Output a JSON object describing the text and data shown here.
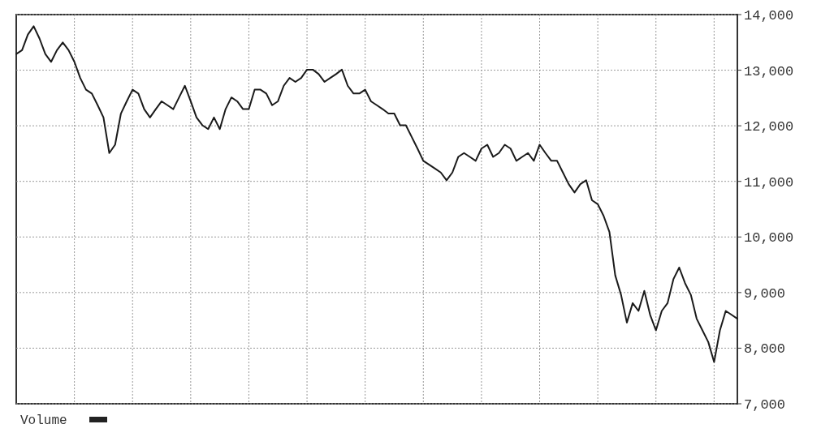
{
  "chart_data": {
    "type": "line",
    "categories": [
      null,
      null,
      null,
      null,
      null,
      null,
      null,
      null,
      null,
      null,
      null,
      null,
      null,
      null,
      null,
      null,
      null,
      null,
      null,
      null,
      null,
      null,
      null,
      null,
      null,
      null,
      null,
      null,
      null,
      null,
      null,
      null,
      null,
      null,
      null,
      null,
      null,
      null,
      null,
      null,
      null,
      null,
      null,
      null,
      null,
      null,
      null,
      null,
      null,
      null,
      null,
      null,
      null,
      null,
      null,
      null,
      null,
      null,
      null,
      null,
      null,
      null,
      null,
      null,
      null,
      null,
      null,
      null,
      null,
      null,
      null,
      null,
      null,
      null,
      null,
      null,
      null,
      null,
      null,
      null,
      null,
      null,
      null,
      null,
      null,
      null,
      null,
      null,
      null,
      null,
      null,
      null,
      null,
      null,
      null,
      null,
      null,
      null,
      null,
      null,
      null,
      null,
      null,
      null,
      null,
      null,
      null,
      null,
      null,
      null,
      null,
      null,
      null,
      null,
      null,
      null,
      null,
      null,
      null,
      null,
      null,
      null,
      null,
      null,
      null
    ],
    "series": [
      {
        "color": "#1a1a1a",
        "values": [
          13290,
          13360,
          13640,
          13790,
          13570,
          13290,
          13150,
          13360,
          13500,
          13360,
          13150,
          12860,
          12650,
          12580,
          12370,
          12150,
          11510,
          11660,
          12220,
          12440,
          12650,
          12580,
          12300,
          12150,
          12300,
          12440,
          12370,
          12300,
          12510,
          12720,
          12440,
          12150,
          12010,
          11940,
          12150,
          11940,
          12300,
          12510,
          12440,
          12300,
          12300,
          12650,
          12650,
          12580,
          12370,
          12440,
          12720,
          12860,
          12790,
          12860,
          13010,
          13010,
          12930,
          12790,
          12860,
          12930,
          13010,
          12720,
          12580,
          12580,
          12650,
          12440,
          12370,
          12300,
          12220,
          12220,
          12010,
          12010,
          11800,
          11590,
          11370,
          11300,
          11230,
          11160,
          11020,
          11160,
          11440,
          11510,
          11440,
          11370,
          11590,
          11660,
          11440,
          11510,
          11660,
          11590,
          11370,
          11440,
          11510,
          11370,
          11660,
          11510,
          11370,
          11370,
          11160,
          10950,
          10800,
          10950,
          11020,
          10660,
          10590,
          10380,
          10090,
          9310,
          8960,
          8460,
          8810,
          8670,
          9030,
          8600,
          8320,
          8670,
          8810,
          9240,
          9450,
          9170,
          8960,
          8530,
          8320,
          8110,
          7750,
          8320,
          8670,
          8600,
          8530
        ]
      }
    ],
    "ylim": [
      7000,
      14000
    ],
    "yticks": [
      {
        "value": 7000,
        "label": "7,000"
      },
      {
        "value": 8000,
        "label": "8,000"
      },
      {
        "value": 9000,
        "label": "9,000"
      },
      {
        "value": 10000,
        "label": "10,000"
      },
      {
        "value": 11000,
        "label": "11,000"
      },
      {
        "value": 12000,
        "label": "12,000"
      },
      {
        "value": 13000,
        "label": "13,000"
      },
      {
        "value": 14000,
        "label": "14,000"
      }
    ],
    "grid": true,
    "tick_labels": "y",
    "annotations": [
      "Volume"
    ]
  }
}
